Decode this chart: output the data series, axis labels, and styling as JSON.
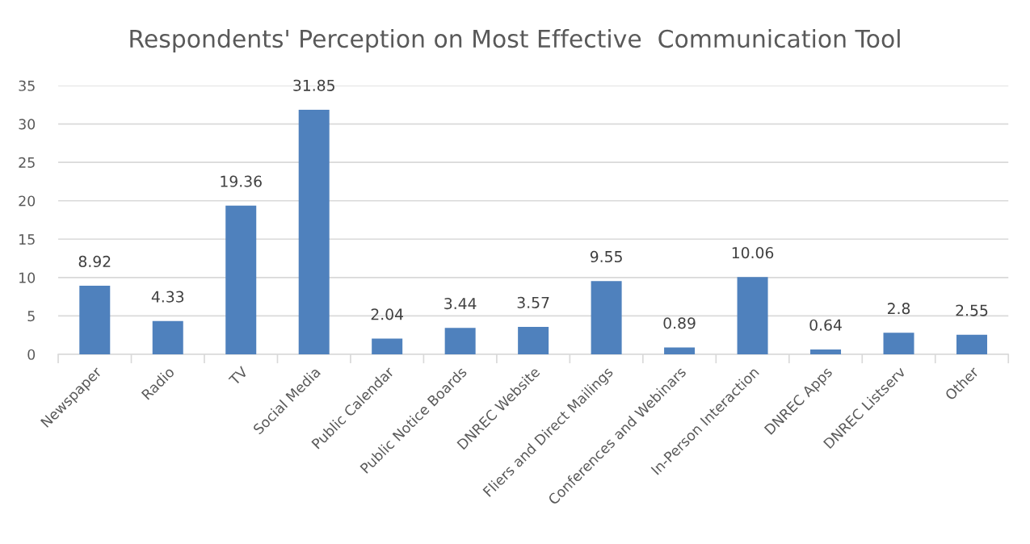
{
  "chart_data": {
    "type": "bar",
    "title": "Respondents' Perception on Most Effective  Communication Tool",
    "categories": [
      "Newspaper",
      "Radio",
      "TV",
      "Social Media",
      "Public Calendar",
      "Public Notice Boards",
      "DNREC Website",
      "Fliers and Direct Mailings",
      "Conferences and Webinars",
      "In-Person Interaction",
      "DNREC Apps",
      "DNREC Listserv",
      "Other"
    ],
    "values": [
      8.92,
      4.33,
      19.36,
      31.85,
      2.04,
      3.44,
      3.57,
      9.55,
      0.89,
      10.06,
      0.64,
      2.8,
      2.55
    ],
    "color": "#4f81bd",
    "ylim": [
      0,
      35
    ],
    "yticks": [
      0,
      5,
      10,
      15,
      20,
      25,
      30,
      35
    ],
    "grid": "y",
    "data_labels": true,
    "legend": false
  }
}
